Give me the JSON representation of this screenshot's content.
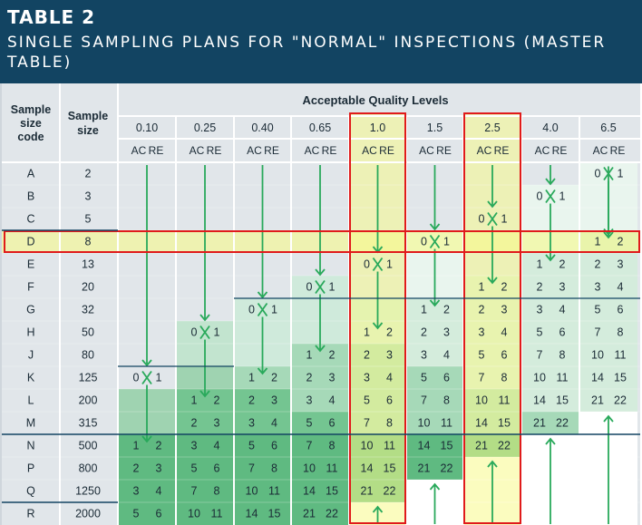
{
  "table": {
    "label": "TABLE 2",
    "title": "SINGLE SAMPLING PLANS FOR \"NORMAL\" INSPECTIONS (MASTER TABLE)",
    "header_sample_code": [
      "Sample",
      "size",
      "code"
    ],
    "header_sample_size": [
      "Sample",
      "size"
    ],
    "header_aql": "Acceptable Quality Levels",
    "ac_label": "AC",
    "re_label": "RE",
    "aql_levels": [
      "0.10",
      "0.25",
      "0.40",
      "0.65",
      "1.0",
      "1.5",
      "2.5",
      "4.0",
      "6.5"
    ],
    "highlighted_columns": [
      "1.0",
      "2.5"
    ],
    "highlighted_row": "D",
    "rows": [
      {
        "code": "A",
        "size": "2",
        "cells": [
          null,
          null,
          null,
          null,
          null,
          null,
          null,
          null,
          [
            "0",
            "1"
          ]
        ]
      },
      {
        "code": "B",
        "size": "3",
        "cells": [
          null,
          null,
          null,
          null,
          null,
          null,
          null,
          [
            "0",
            "1"
          ],
          null
        ]
      },
      {
        "code": "C",
        "size": "5",
        "cells": [
          null,
          null,
          null,
          null,
          null,
          null,
          [
            "0",
            "1"
          ],
          null,
          null
        ]
      },
      {
        "code": "D",
        "size": "8",
        "cells": [
          null,
          null,
          null,
          null,
          null,
          [
            "0",
            "1"
          ],
          null,
          null,
          [
            "1",
            "2"
          ]
        ]
      },
      {
        "code": "E",
        "size": "13",
        "cells": [
          null,
          null,
          null,
          null,
          [
            "0",
            "1"
          ],
          null,
          null,
          [
            "1",
            "2"
          ],
          [
            "2",
            "3"
          ]
        ]
      },
      {
        "code": "F",
        "size": "20",
        "cells": [
          null,
          null,
          null,
          [
            "0",
            "1"
          ],
          null,
          null,
          [
            "1",
            "2"
          ],
          [
            "2",
            "3"
          ],
          [
            "3",
            "4"
          ]
        ]
      },
      {
        "code": "G",
        "size": "32",
        "cells": [
          null,
          null,
          [
            "0",
            "1"
          ],
          null,
          null,
          [
            "1",
            "2"
          ],
          [
            "2",
            "3"
          ],
          [
            "3",
            "4"
          ],
          [
            "5",
            "6"
          ]
        ]
      },
      {
        "code": "H",
        "size": "50",
        "cells": [
          null,
          [
            "0",
            "1"
          ],
          null,
          null,
          [
            "1",
            "2"
          ],
          [
            "2",
            "3"
          ],
          [
            "3",
            "4"
          ],
          [
            "5",
            "6"
          ],
          [
            "7",
            "8"
          ]
        ]
      },
      {
        "code": "J",
        "size": "80",
        "cells": [
          null,
          null,
          null,
          [
            "1",
            "2"
          ],
          [
            "2",
            "3"
          ],
          [
            "3",
            "4"
          ],
          [
            "5",
            "6"
          ],
          [
            "7",
            "8"
          ],
          [
            "10",
            "11"
          ]
        ]
      },
      {
        "code": "K",
        "size": "125",
        "cells": [
          [
            "0",
            "1"
          ],
          null,
          [
            "1",
            "2"
          ],
          [
            "2",
            "3"
          ],
          [
            "3",
            "4"
          ],
          [
            "5",
            "6"
          ],
          [
            "7",
            "8"
          ],
          [
            "10",
            "11"
          ],
          [
            "14",
            "15"
          ]
        ]
      },
      {
        "code": "L",
        "size": "200",
        "cells": [
          null,
          [
            "1",
            "2"
          ],
          [
            "2",
            "3"
          ],
          [
            "3",
            "4"
          ],
          [
            "5",
            "6"
          ],
          [
            "7",
            "8"
          ],
          [
            "10",
            "11"
          ],
          [
            "14",
            "15"
          ],
          [
            "21",
            "22"
          ]
        ]
      },
      {
        "code": "M",
        "size": "315",
        "cells": [
          null,
          [
            "2",
            "3"
          ],
          [
            "3",
            "4"
          ],
          [
            "5",
            "6"
          ],
          [
            "7",
            "8"
          ],
          [
            "10",
            "11"
          ],
          [
            "14",
            "15"
          ],
          [
            "21",
            "22"
          ],
          null
        ]
      },
      {
        "code": "N",
        "size": "500",
        "cells": [
          [
            "1",
            "2"
          ],
          [
            "3",
            "4"
          ],
          [
            "5",
            "6"
          ],
          [
            "7",
            "8"
          ],
          [
            "10",
            "11"
          ],
          [
            "14",
            "15"
          ],
          [
            "21",
            "22"
          ],
          null,
          null
        ]
      },
      {
        "code": "P",
        "size": "800",
        "cells": [
          [
            "2",
            "3"
          ],
          [
            "5",
            "6"
          ],
          [
            "7",
            "8"
          ],
          [
            "10",
            "11"
          ],
          [
            "14",
            "15"
          ],
          [
            "21",
            "22"
          ],
          null,
          null,
          null
        ]
      },
      {
        "code": "Q",
        "size": "1250",
        "cells": [
          [
            "3",
            "4"
          ],
          [
            "7",
            "8"
          ],
          [
            "10",
            "11"
          ],
          [
            "14",
            "15"
          ],
          [
            "21",
            "22"
          ],
          null,
          null,
          null,
          null
        ]
      },
      {
        "code": "R",
        "size": "2000",
        "cells": [
          [
            "5",
            "6"
          ],
          [
            "10",
            "11"
          ],
          [
            "14",
            "15"
          ],
          [
            "21",
            "22"
          ],
          null,
          null,
          null,
          null,
          null
        ]
      }
    ]
  },
  "colors": {
    "header_bg": "#124462",
    "grid_bg": "#e1e6ea",
    "highlight_col": "#f7fa8a",
    "highlight_border": "#e01b1b",
    "arrow": "#29a95b"
  }
}
